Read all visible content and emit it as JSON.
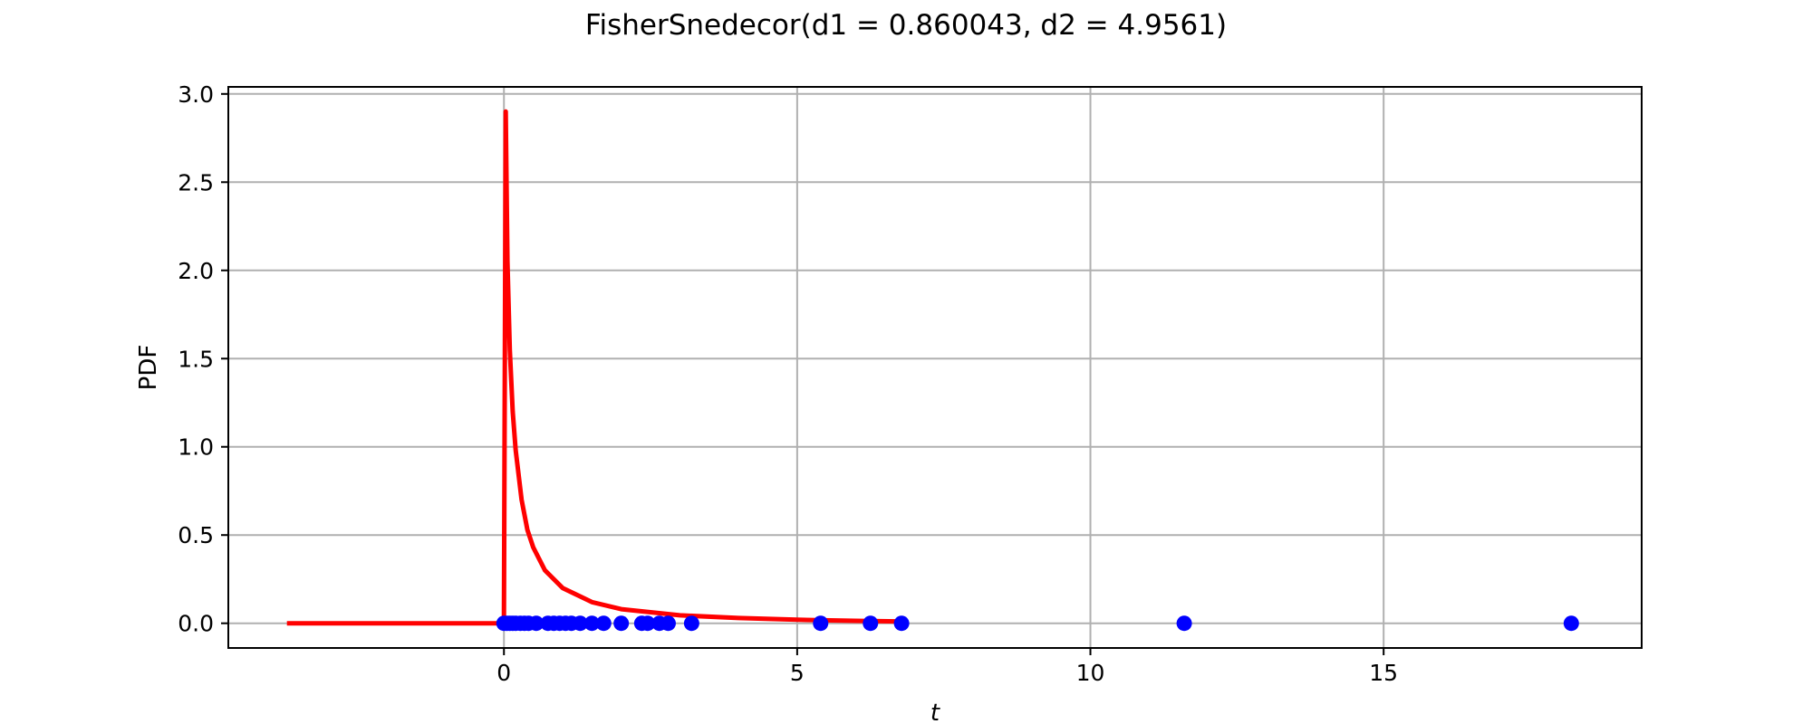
{
  "chart_data": {
    "type": "line",
    "title": "FisherSnedecor(d1 = 0.860043, d2 = 4.9561)",
    "xlabel": "t",
    "ylabel": "PDF",
    "xlim": [
      -4.7,
      19.4
    ],
    "ylim": [
      -0.14,
      3.04
    ],
    "xticks": [
      0,
      5,
      10,
      15
    ],
    "xtick_labels": [
      "0",
      "5",
      "10",
      "15"
    ],
    "yticks": [
      0.0,
      0.5,
      1.0,
      1.5,
      2.0,
      2.5,
      3.0
    ],
    "ytick_labels": [
      "0.0",
      "0.5",
      "1.0",
      "1.5",
      "2.0",
      "2.5",
      "3.0"
    ],
    "grid": true,
    "series": [
      {
        "kind": "line",
        "color": "#ff0000",
        "x": [
          -3.7,
          -0.03,
          0.0,
          0.03,
          0.06,
          0.1,
          0.15,
          0.2,
          0.3,
          0.4,
          0.5,
          0.7,
          1.0,
          1.5,
          2.0,
          3.0,
          4.0,
          5.0,
          6.0,
          6.7
        ],
        "y": [
          0.0,
          0.0,
          0.0,
          2.9,
          2.05,
          1.55,
          1.2,
          0.98,
          0.7,
          0.53,
          0.43,
          0.3,
          0.2,
          0.12,
          0.08,
          0.045,
          0.03,
          0.02,
          0.014,
          0.011
        ]
      },
      {
        "kind": "scatter",
        "color": "#0000ff",
        "x": [
          0.0,
          0.05,
          0.1,
          0.15,
          0.2,
          0.28,
          0.35,
          0.42,
          0.55,
          0.75,
          0.85,
          0.95,
          1.05,
          1.15,
          1.3,
          1.5,
          1.7,
          2.0,
          2.35,
          2.45,
          2.65,
          2.8,
          3.2,
          5.4,
          6.25,
          6.78,
          11.6,
          18.2
        ],
        "y": [
          0,
          0,
          0,
          0,
          0,
          0,
          0,
          0,
          0,
          0,
          0,
          0,
          0,
          0,
          0,
          0,
          0,
          0,
          0,
          0,
          0,
          0,
          0,
          0,
          0,
          0,
          0,
          0
        ]
      }
    ]
  }
}
